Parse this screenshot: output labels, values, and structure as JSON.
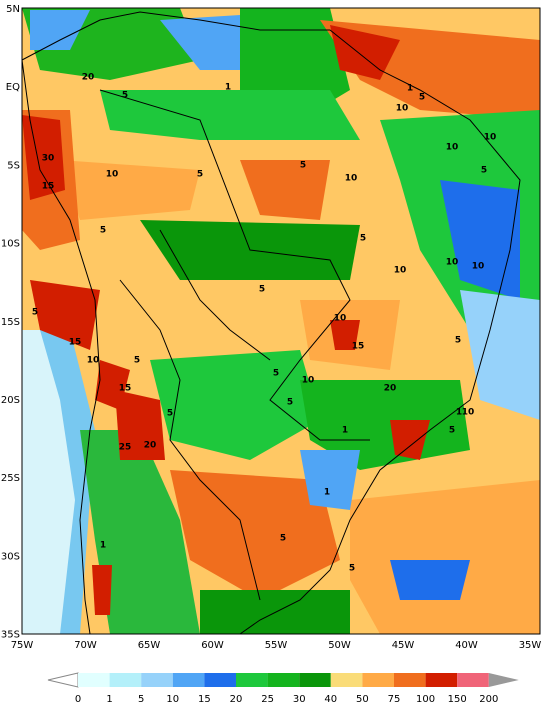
{
  "map": {
    "lat_labels": [
      "5N",
      "EQ",
      "5S",
      "10S",
      "15S",
      "20S",
      "25S",
      "30S",
      "35S"
    ],
    "lon_labels": [
      "75W",
      "70W",
      "65W",
      "60W",
      "55W",
      "50W",
      "45W",
      "40W",
      "35W"
    ],
    "contour_labels": [
      20,
      5,
      1,
      1,
      5,
      10,
      10,
      10,
      30,
      15,
      10,
      5,
      5,
      10,
      5,
      5,
      5,
      10,
      10,
      10,
      5,
      5,
      10,
      15,
      15,
      10,
      5,
      5,
      10,
      5,
      15,
      20,
      5,
      5,
      1,
      10,
      1,
      5,
      25,
      20,
      1,
      5,
      1,
      5
    ],
    "colorbar": {
      "levels": [
        0,
        1,
        5,
        10,
        15,
        20,
        25,
        30,
        40,
        50,
        75,
        100,
        150,
        200
      ],
      "colors": [
        "#e1ffff",
        "#b4f0fa",
        "#96d2fa",
        "#50a5f5",
        "#1e6eeb",
        "#1ec83c",
        "#14b41e",
        "#0a960a",
        "#fadc78",
        "#ffaa46",
        "#f06e1e",
        "#d21e00",
        "#f06478"
      ]
    }
  }
}
